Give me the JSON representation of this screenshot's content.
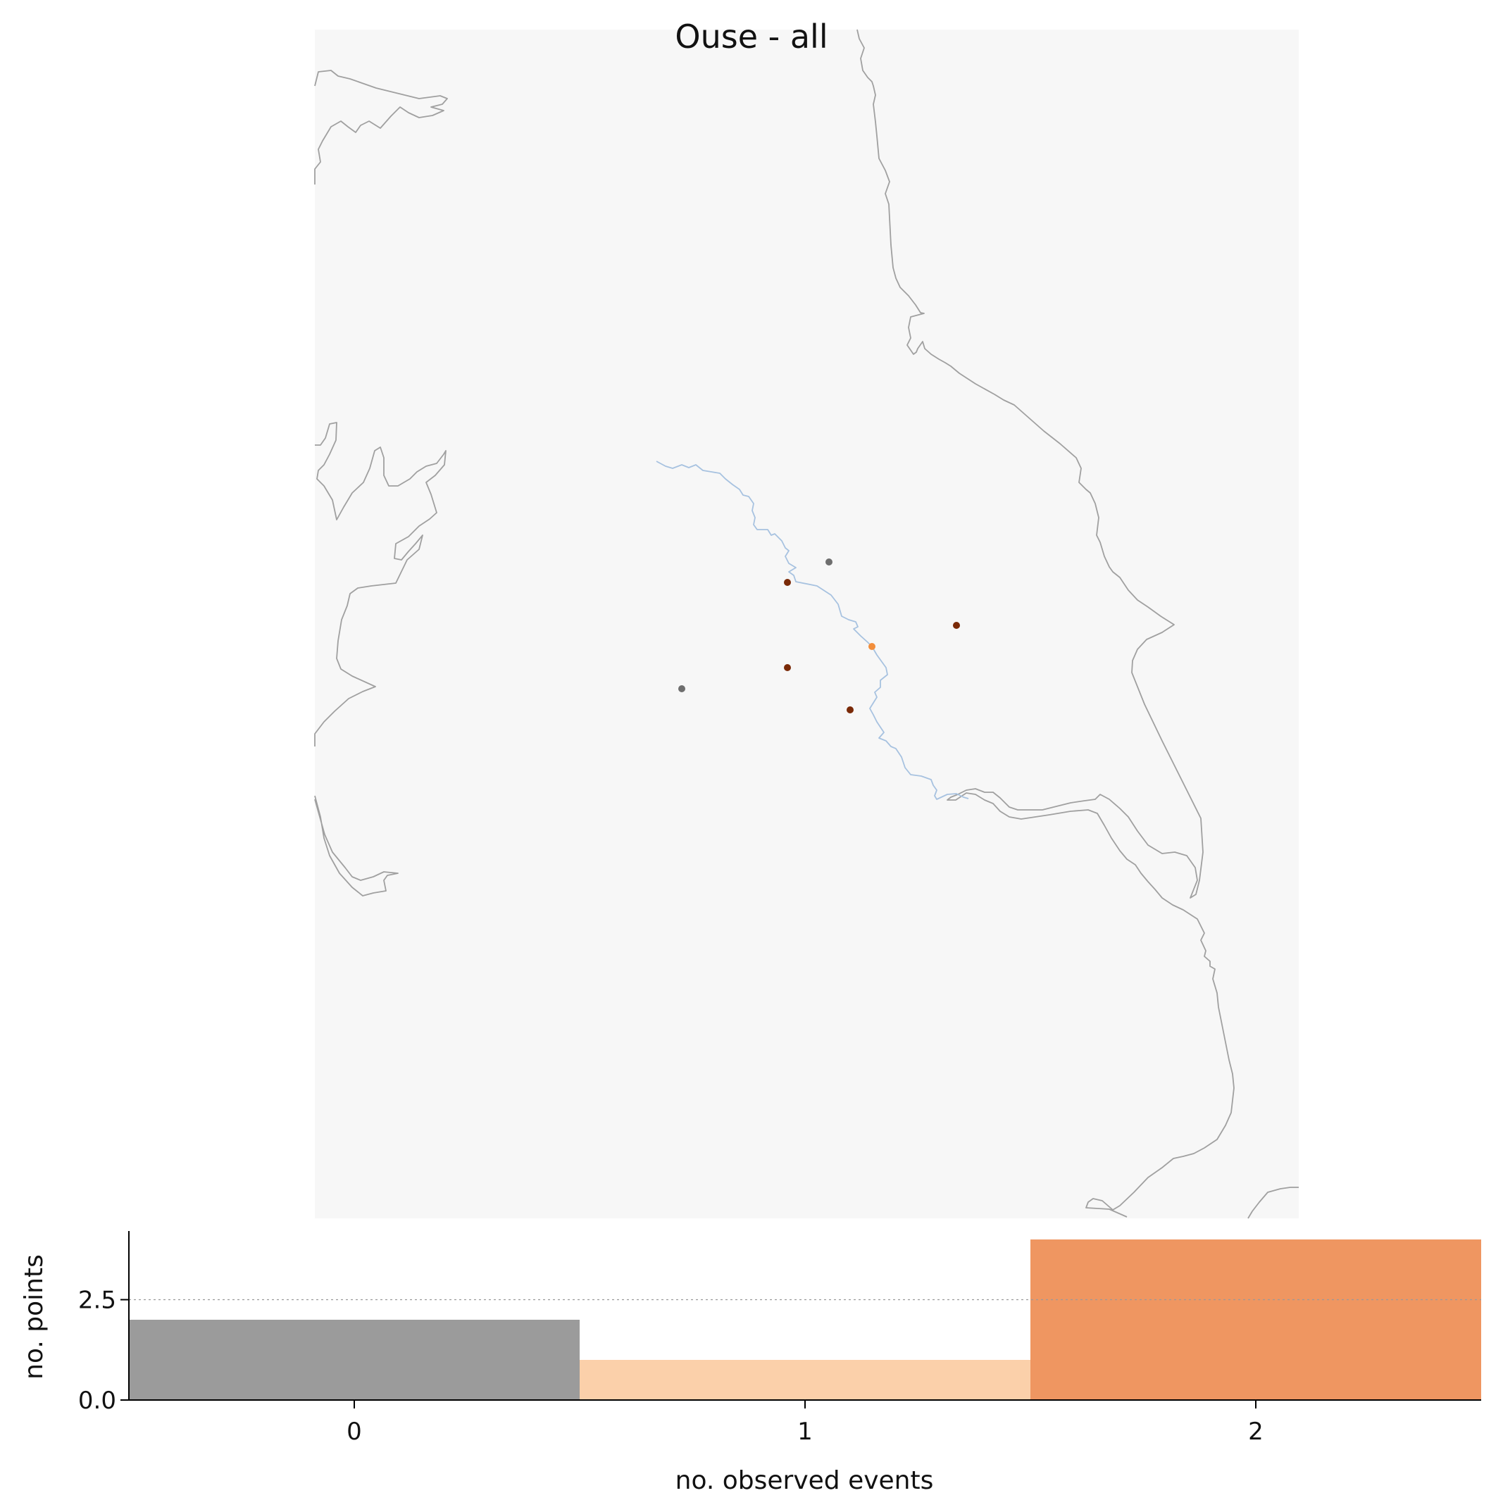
{
  "title": "Ouse - all",
  "colors": {
    "map_background": "#f7f7f7",
    "coastline": "#a0a0a0",
    "river": "#a7c2e0",
    "no_data": "#6e6e6e",
    "events_1": "#f28e3b",
    "events_2": "#7a2a08"
  },
  "map": {
    "coastline_visible": true,
    "river_visible": true,
    "stations": [
      {
        "events": null
      },
      {
        "events": 2
      },
      {
        "events": 2
      },
      {
        "events": 1
      },
      {
        "events": 2
      },
      {
        "events": null
      },
      {
        "events": 2
      }
    ]
  },
  "chart_data": {
    "type": "bar",
    "categories": [
      "0",
      "1",
      "2"
    ],
    "values": [
      2,
      1,
      4
    ],
    "bar_colors": [
      "#9b9b9b",
      "#fbd0aa",
      "#ef9661"
    ],
    "xlabel": "no. observed events",
    "ylabel": "no. points",
    "ylim": [
      0,
      4
    ],
    "xlim": [
      -0.5,
      2.5
    ],
    "yticks": [
      "0.0",
      "2.5"
    ],
    "reference_line": 2.5,
    "grid": false
  }
}
